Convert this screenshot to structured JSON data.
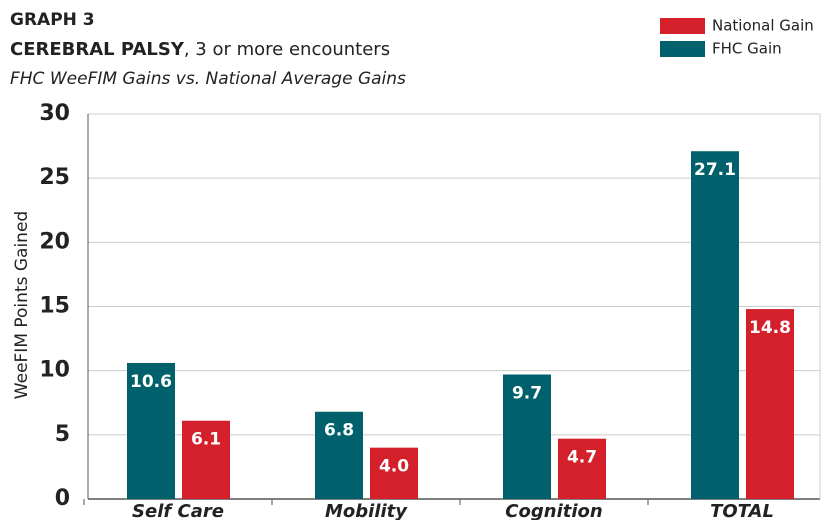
{
  "chart_data": {
    "type": "bar",
    "title_label": "GRAPH 3",
    "title_bold": "CEREBRAL PALSY",
    "title_rest": ", 3 or more encounters",
    "subtitle": "FHC WeeFIM Gains vs. National Average Gains",
    "y_label": "WeeFIM Points Gained",
    "categories": [
      "Self Care",
      "Mobility",
      "Cognition",
      "TOTAL"
    ],
    "series": [
      {
        "name": "FHC Gain",
        "color": "#00616c",
        "values": [
          10.6,
          6.8,
          9.7,
          27.1
        ]
      },
      {
        "name": "National Gain",
        "color": "#d3202b",
        "values": [
          6.1,
          4.0,
          4.7,
          14.8
        ],
        "value_labels": [
          "6.1",
          "4.0",
          "4.7",
          "14.8"
        ]
      }
    ],
    "legend_order": [
      "National Gain",
      "FHC Gain"
    ],
    "ylim": [
      0,
      30
    ],
    "yticks": [
      0,
      5,
      10,
      15,
      20,
      25,
      30
    ],
    "grid": true,
    "legend": "top-right"
  }
}
